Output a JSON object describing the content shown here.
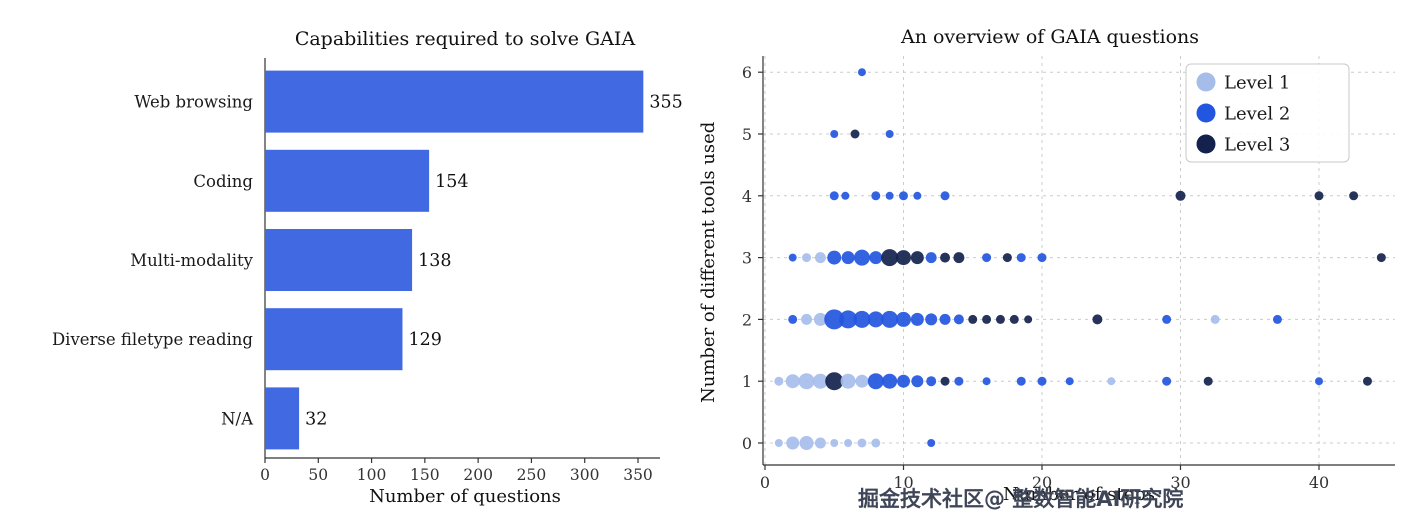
{
  "watermark": "掘金技术社区@ 整数智能AI研究院",
  "chart_data": [
    {
      "type": "bar",
      "orientation": "horizontal",
      "title": "Capabilities required to solve GAIA",
      "categories": [
        "Web browsing",
        "Coding",
        "Multi-modality",
        "Diverse filetype reading",
        "N/A"
      ],
      "values": [
        355,
        154,
        138,
        129,
        32
      ],
      "xlabel": "Number of questions",
      "ylabel": "",
      "xlim": [
        0,
        375
      ],
      "xticks": [
        0,
        50,
        100,
        150,
        200,
        250,
        300,
        350
      ],
      "bar_color": "#4169e1",
      "value_labels": true,
      "grid": "off"
    },
    {
      "type": "scatter",
      "title": "An overview of GAIA questions",
      "xlabel": "Number of steps",
      "ylabel": "Number of different tools used",
      "xticks": [
        0,
        10,
        20,
        30,
        40
      ],
      "yticks": [
        0,
        1,
        2,
        3,
        4,
        5,
        6
      ],
      "xlim": [
        -1.5,
        45.5
      ],
      "ylim": [
        -0.4,
        6.3
      ],
      "grid": "dashed",
      "legend": {
        "position": "upper right",
        "entries": [
          {
            "label": "Level 1",
            "level": 1,
            "color": "#a6bdea"
          },
          {
            "label": "Level 2",
            "level": 2,
            "color": "#2356e0"
          },
          {
            "label": "Level 3",
            "level": 3,
            "color": "#13224d"
          }
        ]
      },
      "points_format": [
        "x_steps",
        "y_tools",
        "radius_px",
        "level"
      ],
      "points": [
        [
          7,
          6,
          4,
          2
        ],
        [
          5,
          5,
          4,
          2
        ],
        [
          6.5,
          5,
          4.5,
          3
        ],
        [
          9,
          5,
          4,
          2
        ],
        [
          5,
          4,
          4.5,
          2
        ],
        [
          5.8,
          4,
          4,
          2
        ],
        [
          8,
          4,
          4.5,
          2
        ],
        [
          9,
          4,
          4,
          2
        ],
        [
          10,
          4,
          4.5,
          2
        ],
        [
          11,
          4,
          4,
          2
        ],
        [
          13,
          4,
          4.5,
          2
        ],
        [
          30,
          4,
          5,
          3
        ],
        [
          40,
          4,
          4.5,
          3
        ],
        [
          42.5,
          4,
          4.5,
          3
        ],
        [
          2,
          3,
          4,
          2
        ],
        [
          3,
          3,
          4.5,
          1
        ],
        [
          4,
          3,
          5.5,
          1
        ],
        [
          5,
          3,
          7,
          2
        ],
        [
          6,
          3,
          6.5,
          2
        ],
        [
          7,
          3,
          8,
          2
        ],
        [
          8,
          3,
          6.5,
          2
        ],
        [
          9,
          3,
          8.5,
          3
        ],
        [
          10,
          3,
          7.5,
          3
        ],
        [
          11,
          3,
          6.5,
          3
        ],
        [
          12,
          3,
          5.5,
          2
        ],
        [
          13,
          3,
          5,
          3
        ],
        [
          14,
          3,
          5.5,
          3
        ],
        [
          16,
          3,
          4.5,
          2
        ],
        [
          17.5,
          3,
          4.5,
          3
        ],
        [
          18.5,
          3,
          4.5,
          2
        ],
        [
          20,
          3,
          4.5,
          2
        ],
        [
          44.5,
          3,
          4.5,
          3
        ],
        [
          2,
          2,
          4.5,
          2
        ],
        [
          3,
          2,
          5.5,
          1
        ],
        [
          4,
          2,
          6.5,
          1
        ],
        [
          5,
          2,
          10,
          2
        ],
        [
          6,
          2,
          9,
          2
        ],
        [
          7,
          2,
          8.5,
          2
        ],
        [
          8,
          2,
          8,
          2
        ],
        [
          9,
          2,
          8.5,
          2
        ],
        [
          10,
          2,
          7.5,
          2
        ],
        [
          11,
          2,
          6.5,
          2
        ],
        [
          12,
          2,
          6,
          2
        ],
        [
          13,
          2,
          5.5,
          2
        ],
        [
          14,
          2,
          5,
          2
        ],
        [
          15,
          2,
          4.5,
          3
        ],
        [
          16,
          2,
          4.5,
          3
        ],
        [
          17,
          2,
          4.5,
          3
        ],
        [
          18,
          2,
          4.5,
          3
        ],
        [
          19,
          2,
          4,
          3
        ],
        [
          24,
          2,
          5,
          3
        ],
        [
          29,
          2,
          4.5,
          2
        ],
        [
          32.5,
          2,
          4.5,
          1
        ],
        [
          37,
          2,
          4.5,
          2
        ],
        [
          1,
          1,
          4.5,
          1
        ],
        [
          2,
          1,
          7,
          1
        ],
        [
          3,
          1,
          8,
          1
        ],
        [
          4,
          1,
          7.5,
          1
        ],
        [
          5,
          1,
          9,
          3
        ],
        [
          6,
          1,
          7.5,
          1
        ],
        [
          7,
          1,
          6.5,
          1
        ],
        [
          8,
          1,
          8,
          2
        ],
        [
          9,
          1,
          7.5,
          2
        ],
        [
          10,
          1,
          6.5,
          2
        ],
        [
          11,
          1,
          6,
          2
        ],
        [
          12,
          1,
          5,
          2
        ],
        [
          13,
          1,
          4.5,
          3
        ],
        [
          14,
          1,
          4.5,
          2
        ],
        [
          16,
          1,
          4,
          2
        ],
        [
          18.5,
          1,
          4.5,
          2
        ],
        [
          20,
          1,
          4.5,
          2
        ],
        [
          22,
          1,
          4,
          2
        ],
        [
          25,
          1,
          4,
          1
        ],
        [
          29,
          1,
          4.5,
          2
        ],
        [
          32,
          1,
          4.5,
          3
        ],
        [
          40,
          1,
          4,
          2
        ],
        [
          43.5,
          1,
          4.5,
          3
        ],
        [
          1,
          0,
          4,
          1
        ],
        [
          2,
          0,
          6.5,
          1
        ],
        [
          3,
          0,
          7,
          1
        ],
        [
          4,
          0,
          5.5,
          1
        ],
        [
          5,
          0,
          4,
          1
        ],
        [
          6,
          0,
          4,
          1
        ],
        [
          7,
          0,
          4.5,
          1
        ],
        [
          8,
          0,
          4.5,
          1
        ],
        [
          12,
          0,
          4,
          2
        ]
      ]
    }
  ]
}
